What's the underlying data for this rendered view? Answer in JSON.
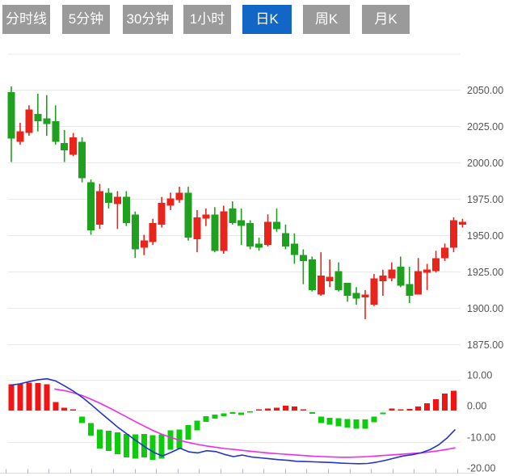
{
  "toolbar": {
    "tabs": [
      {
        "label": "分时线",
        "active": false
      },
      {
        "label": "5分钟",
        "active": false
      },
      {
        "label": "30分钟",
        "active": false
      },
      {
        "label": "1小时",
        "active": false
      },
      {
        "label": "日K",
        "active": true
      },
      {
        "label": "周K",
        "active": false
      },
      {
        "label": "月K",
        "active": false
      }
    ]
  },
  "colors": {
    "up": "#e8251d",
    "down": "#1fa11f",
    "macd_up": "#f01414",
    "macd_down": "#0ccc0c",
    "dif_line": "#2433cb",
    "dea_line": "#f02ce8",
    "grid": "#e8e8e8",
    "axis_line": "#d8dce4",
    "tick": "#aab4c8",
    "label": "#555555",
    "tab_bg": "#9a9a9a",
    "tab_active_bg": "#1266c5",
    "tab_text": "#ffffff"
  },
  "chart_data": {
    "type": "candlestick",
    "title": "",
    "legend_position": "none",
    "grid": true,
    "price_axis": {
      "side": "right",
      "ticks": [
        {
          "value": 2050,
          "label": "2050.00"
        },
        {
          "value": 2025,
          "label": "2025.00"
        },
        {
          "value": 2000,
          "label": "2000.00"
        },
        {
          "value": 1975,
          "label": "1975.00"
        },
        {
          "value": 1950,
          "label": "1950.00"
        },
        {
          "value": 1925,
          "label": "1925.00"
        },
        {
          "value": 1900,
          "label": "1900.00"
        },
        {
          "value": 1875,
          "label": "1875.00"
        }
      ]
    },
    "macd_axis": {
      "side": "right",
      "ticks": [
        {
          "value": 10,
          "label": "10.00"
        },
        {
          "value": 0,
          "label": "0.00"
        },
        {
          "value": -10,
          "label": "-10.00"
        },
        {
          "value": -20,
          "label": "-20.00"
        }
      ]
    },
    "candles_ohlc_note": "each candle is [open, high, low, close]; red = close>=open (CN convention), green = down",
    "candles": [
      [
        2048,
        2052,
        2000,
        2016
      ],
      [
        2014,
        2027,
        2012,
        2021
      ],
      [
        2020,
        2039,
        2018,
        2036
      ],
      [
        2033,
        2047,
        2021,
        2028
      ],
      [
        2030,
        2046,
        2018,
        2026
      ],
      [
        2028,
        2039,
        2012,
        2014
      ],
      [
        2013,
        2022,
        2000,
        2008
      ],
      [
        2005,
        2020,
        2004,
        2017
      ],
      [
        2014,
        2017,
        1986,
        1989
      ],
      [
        1986,
        1988,
        1950,
        1953
      ],
      [
        1957,
        1985,
        1954,
        1980
      ],
      [
        1979,
        1982,
        1968,
        1972
      ],
      [
        1971,
        1980,
        1954,
        1976
      ],
      [
        1976,
        1980,
        1956,
        1958
      ],
      [
        1964,
        1966,
        1934,
        1940
      ],
      [
        1941,
        1950,
        1936,
        1946
      ],
      [
        1945,
        1961,
        1943,
        1958
      ],
      [
        1957,
        1976,
        1955,
        1972
      ],
      [
        1970,
        1979,
        1967,
        1975
      ],
      [
        1974,
        1983,
        1972,
        1979
      ],
      [
        1979,
        1983,
        1946,
        1948
      ],
      [
        1947,
        1967,
        1938,
        1962
      ],
      [
        1961,
        1968,
        1956,
        1964
      ],
      [
        1964,
        1969,
        1938,
        1939
      ],
      [
        1939,
        1970,
        1937,
        1966
      ],
      [
        1968,
        1973,
        1957,
        1958
      ],
      [
        1960,
        1968,
        1943,
        1956
      ],
      [
        1958,
        1960,
        1940,
        1942
      ],
      [
        1944,
        1948,
        1939,
        1941
      ],
      [
        1943,
        1964,
        1942,
        1959
      ],
      [
        1959,
        1968,
        1952,
        1954
      ],
      [
        1951,
        1957,
        1940,
        1942
      ],
      [
        1944,
        1951,
        1930,
        1936
      ],
      [
        1936,
        1940,
        1916,
        1932
      ],
      [
        1933,
        1935,
        1911,
        1912
      ],
      [
        1909,
        1938,
        1908,
        1922
      ],
      [
        1918,
        1933,
        1914,
        1921
      ],
      [
        1925,
        1931,
        1911,
        1912
      ],
      [
        1917,
        1917,
        1904,
        1908
      ],
      [
        1910,
        1914,
        1902,
        1906
      ],
      [
        1907,
        1912,
        1892,
        1909
      ],
      [
        1902,
        1923,
        1901,
        1920
      ],
      [
        1918,
        1926,
        1908,
        1922
      ],
      [
        1920,
        1931,
        1918,
        1926
      ],
      [
        1928,
        1935,
        1914,
        1915
      ],
      [
        1916,
        1928,
        1903,
        1908
      ],
      [
        1909,
        1934,
        1909,
        1925
      ],
      [
        1924,
        1930,
        1912,
        1926
      ],
      [
        1925,
        1939,
        1924,
        1934
      ],
      [
        1934,
        1944,
        1932,
        1941
      ],
      [
        1941,
        1962,
        1938,
        1960
      ],
      [
        1957,
        1961,
        1955,
        1959
      ]
    ],
    "macd": {
      "histogram": [
        8.4,
        8.7,
        8.9,
        8.8,
        8.5,
        2.7,
        0.9,
        0.3,
        -2.0,
        -4.0,
        -6.1,
        -6.5,
        -7.0,
        -7.5,
        -7.7,
        -7.5,
        -7.9,
        -7.7,
        -6.3,
        -6.1,
        -4.7,
        -3.2,
        -1.8,
        -1.3,
        -0.9,
        -0.5,
        -0.7,
        -0.3,
        0.2,
        0.6,
        0.9,
        1.5,
        1.3,
        0.3,
        -0.5,
        -2.0,
        -2.3,
        -2.5,
        -2.7,
        -2.9,
        -2.9,
        -1.9,
        -0.6,
        0.6,
        0.45,
        0.55,
        1.35,
        2.4,
        3.6,
        5.4,
        6.3,
        0
      ],
      "dif": [
        [
          14,
          8.2
        ],
        [
          25,
          8.6
        ],
        [
          36,
          9.3
        ],
        [
          47,
          9.9
        ],
        [
          58,
          10.2
        ],
        [
          69,
          9.5
        ],
        [
          80,
          7.9
        ],
        [
          91,
          6.2
        ],
        [
          102,
          4.2
        ],
        [
          113,
          1.9
        ],
        [
          124,
          -0.6
        ],
        [
          135,
          -3.0
        ],
        [
          146,
          -5.4
        ],
        [
          157,
          -7.5
        ],
        [
          168,
          -9.6
        ],
        [
          179,
          -11.6
        ],
        [
          190,
          -13.4
        ],
        [
          201,
          -14.6
        ],
        [
          212,
          -13.4
        ],
        [
          223,
          -12.1
        ],
        [
          234,
          -13.3
        ],
        [
          245,
          -13.6
        ],
        [
          256,
          -12.9
        ],
        [
          267,
          -13.2
        ],
        [
          278,
          -14.1
        ],
        [
          289,
          -14.8
        ],
        [
          300,
          -14.3
        ],
        [
          311,
          -14.9
        ],
        [
          322,
          -15.2
        ],
        [
          334,
          -15.5
        ],
        [
          345,
          -15.8
        ],
        [
          356,
          -16.0
        ],
        [
          367,
          -16.3
        ],
        [
          378,
          -16.4
        ],
        [
          389,
          -16.5
        ],
        [
          400,
          -16.6
        ],
        [
          411,
          -16.7
        ],
        [
          422,
          -16.9
        ],
        [
          433,
          -17.0
        ],
        [
          444,
          -17.1
        ],
        [
          455,
          -17.0
        ],
        [
          466,
          -16.6
        ],
        [
          477,
          -16.0
        ],
        [
          488,
          -15.3
        ],
        [
          499,
          -14.6
        ],
        [
          510,
          -14.2
        ],
        [
          521,
          -13.6
        ],
        [
          532,
          -12.6
        ],
        [
          543,
          -11.0
        ],
        [
          553,
          -8.9
        ],
        [
          563,
          -6.2
        ]
      ],
      "dea": [
        [
          68,
          6.9
        ],
        [
          80,
          6.4
        ],
        [
          91,
          5.7
        ],
        [
          102,
          4.8
        ],
        [
          113,
          3.6
        ],
        [
          124,
          2.3
        ],
        [
          135,
          0.9
        ],
        [
          146,
          -0.6
        ],
        [
          157,
          -2.1
        ],
        [
          168,
          -3.6
        ],
        [
          179,
          -5.1
        ],
        [
          190,
          -6.5
        ],
        [
          201,
          -7.7
        ],
        [
          212,
          -8.7
        ],
        [
          223,
          -9.6
        ],
        [
          234,
          -10.3
        ],
        [
          245,
          -10.9
        ],
        [
          256,
          -11.4
        ],
        [
          267,
          -11.8
        ],
        [
          278,
          -12.2
        ],
        [
          289,
          -12.5
        ],
        [
          300,
          -12.8
        ],
        [
          311,
          -13.1
        ],
        [
          322,
          -13.4
        ],
        [
          334,
          -13.7
        ],
        [
          345,
          -13.9
        ],
        [
          356,
          -14.1
        ],
        [
          367,
          -14.3
        ],
        [
          378,
          -14.5
        ],
        [
          389,
          -14.7
        ],
        [
          400,
          -14.8
        ],
        [
          411,
          -14.9
        ],
        [
          422,
          -15.0
        ],
        [
          433,
          -15.0
        ],
        [
          444,
          -14.9
        ],
        [
          455,
          -14.8
        ],
        [
          466,
          -14.6
        ],
        [
          477,
          -14.4
        ],
        [
          488,
          -14.2
        ],
        [
          499,
          -14.0
        ],
        [
          510,
          -13.8
        ],
        [
          521,
          -13.6
        ],
        [
          532,
          -13.3
        ],
        [
          543,
          -12.9
        ],
        [
          553,
          -12.5
        ],
        [
          563,
          -12.0
        ]
      ]
    }
  }
}
